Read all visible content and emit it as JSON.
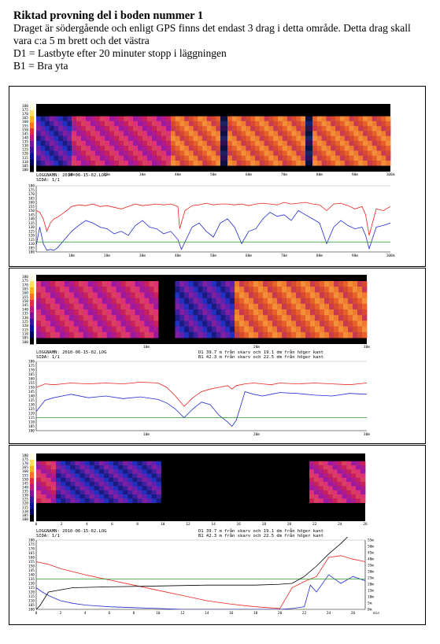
{
  "header": {
    "title": "Riktad provning del i boden nummer 1",
    "lines": [
      "Draget är södergående och enligt GPS finns det endast 3 drag i detta område. Detta drag skall vara c:a 5 m brett och det västra",
      "D1 = Lastbyte efter 20 minuter stopp i läggningen",
      "B1 = Bra yta"
    ]
  },
  "colors": {
    "red_series": "#e8231f",
    "blue_series": "#1f2bd1",
    "green_line": "#2a9a2a",
    "thermal_black": "#000000"
  },
  "scale_labels": [
    "180",
    "175",
    "170",
    "165",
    "160",
    "155",
    "150",
    "145",
    "140",
    "135",
    "130",
    "125",
    "120",
    "115",
    "110",
    "105",
    "100"
  ],
  "panels": [
    {
      "thermal_x_ticks": [
        "10m",
        "20m",
        "30m",
        "40m",
        "50m",
        "60m",
        "70m",
        "80m",
        "90m",
        "100m"
      ],
      "info_left": [
        "LOGGNAMN: 2010-06-15-02.LOG",
        "SIDA: 1/1"
      ],
      "info_right": [],
      "chart_x_ticks": [
        "10m",
        "20m",
        "30m",
        "40m",
        "50m",
        "60m",
        "70m",
        "80m",
        "90m",
        "100m"
      ],
      "chart_y_ticks": [
        "180",
        "175",
        "170",
        "165",
        "160",
        "155",
        "150",
        "145",
        "140",
        "135",
        "130",
        "125",
        "120",
        "115",
        "110",
        "105",
        "100"
      ]
    },
    {
      "thermal_x_ticks": [
        "10m",
        "20m",
        "30m"
      ],
      "info_left": [
        "LOGGNAMN: 2010-06-15-02.LOG",
        "SIDA: 1/1"
      ],
      "info_right": [
        "D1 39.7 m från skarv och 19.1 dm från höger kant",
        "B1 42.3 m från skarv och 22.5 dm från höger kant"
      ],
      "chart_x_ticks": [
        "10m",
        "20m",
        "30m"
      ],
      "chart_y_ticks": [
        "180",
        "175",
        "170",
        "165",
        "160",
        "155",
        "150",
        "145",
        "140",
        "135",
        "130",
        "125",
        "120",
        "115",
        "110",
        "105",
        "100"
      ]
    },
    {
      "thermal_x_ticks": [
        "0",
        "2",
        "4",
        "6",
        "8",
        "10",
        "12",
        "14",
        "16",
        "18",
        "20",
        "22",
        "24",
        "26"
      ],
      "info_left": [
        "LOGGNAMN: 2010-06-15-02.LOG",
        "SIDA: 1/1"
      ],
      "info_right": [
        "D1 39.7 m från skarv och 19.1 dm från höger kant",
        "B1 42.3 m från skarv och 22.5 dm från höger kant"
      ],
      "chart_x_ticks": [
        "0",
        "2",
        "4",
        "6",
        "8",
        "10",
        "12",
        "14",
        "16",
        "18",
        "20",
        "22",
        "24",
        "26"
      ],
      "chart_y_ticks": [
        "180",
        "175",
        "170",
        "165",
        "160",
        "155",
        "150",
        "145",
        "140",
        "135",
        "130",
        "125",
        "120",
        "115",
        "110",
        "105",
        "100"
      ],
      "chart_y2_ticks": [
        "55m",
        "50m",
        "45m",
        "40m",
        "35m",
        "30m",
        "25m",
        "20m",
        "15m",
        "10m",
        "5m",
        "0m"
      ],
      "chart_x_unit": "min"
    }
  ],
  "chart_data": [
    {
      "type": "line",
      "x_ticks": [
        "10m",
        "20m",
        "30m",
        "40m",
        "50m",
        "60m",
        "70m",
        "80m",
        "90m",
        "100m"
      ],
      "xlim": [
        0,
        100
      ],
      "ylim": [
        100,
        180
      ],
      "series": [
        {
          "x": [
            0,
            1,
            2,
            3,
            4,
            5,
            6,
            8,
            10,
            12,
            14,
            16,
            18,
            20,
            22,
            24,
            26,
            28,
            30,
            32,
            34,
            36,
            38,
            40,
            40.5,
            42,
            44,
            46,
            48,
            50,
            52,
            54,
            56,
            58,
            60,
            62,
            64,
            66,
            68,
            70,
            72,
            74,
            76,
            78,
            80,
            82,
            84,
            86,
            88,
            90,
            92,
            93,
            94,
            96,
            98,
            100
          ],
          "values": [
            150,
            148,
            140,
            125,
            135,
            140,
            142,
            148,
            155,
            157,
            156,
            158,
            155,
            156,
            154,
            152,
            155,
            158,
            156,
            157,
            158,
            157,
            158,
            155,
            128,
            150,
            156,
            157,
            159,
            157,
            158,
            158,
            157,
            158,
            156,
            158,
            159,
            158,
            157,
            160,
            158,
            159,
            160,
            158,
            157,
            150,
            158,
            159,
            156,
            152,
            155,
            145,
            120,
            152,
            150,
            155
          ]
        },
        {
          "x": [
            0,
            1,
            2,
            3,
            4,
            5,
            6,
            8,
            10,
            12,
            14,
            16,
            18,
            20,
            22,
            24,
            26,
            28,
            30,
            32,
            34,
            36,
            38,
            40,
            41,
            42,
            44,
            46,
            48,
            50,
            52,
            54,
            56,
            58,
            60,
            62,
            64,
            66,
            68,
            70,
            72,
            74,
            76,
            78,
            80,
            82,
            84,
            86,
            88,
            90,
            92,
            93,
            94,
            96,
            98,
            100
          ],
          "values": [
            108,
            130,
            110,
            102,
            103,
            102,
            105,
            115,
            125,
            132,
            138,
            135,
            130,
            128,
            122,
            125,
            120,
            132,
            138,
            130,
            128,
            122,
            125,
            115,
            103,
            112,
            130,
            135,
            125,
            118,
            135,
            140,
            130,
            110,
            125,
            128,
            140,
            148,
            143,
            145,
            138,
            150,
            145,
            140,
            135,
            110,
            130,
            138,
            132,
            128,
            130,
            120,
            104,
            130,
            132,
            135
          ]
        },
        {
          "x": [
            0,
            100
          ],
          "values": [
            112,
            112
          ]
        }
      ]
    },
    {
      "type": "line",
      "x_ticks": [
        "10m",
        "20m",
        "30m"
      ],
      "xlim": [
        0,
        38
      ],
      "ylim": [
        100,
        180
      ],
      "series": [
        {
          "x": [
            0,
            1,
            2,
            3,
            4,
            6,
            8,
            10,
            12,
            14,
            15,
            16,
            17,
            18,
            19,
            20,
            21,
            22,
            22.5,
            23,
            24,
            25,
            26,
            27,
            28,
            30,
            32,
            34,
            36,
            38
          ],
          "values": [
            150,
            154,
            153,
            154,
            155,
            154,
            155,
            154,
            156,
            155,
            150,
            140,
            128,
            138,
            145,
            148,
            150,
            152,
            148,
            152,
            154,
            155,
            154,
            153,
            155,
            154,
            155,
            154,
            153,
            155
          ]
        },
        {
          "x": [
            0,
            1,
            2,
            3,
            4,
            6,
            8,
            10,
            12,
            14,
            15,
            16,
            17,
            18,
            19,
            20,
            21,
            22,
            22.5,
            23,
            24,
            25,
            26,
            27,
            28,
            30,
            32,
            34,
            36,
            38
          ],
          "values": [
            122,
            135,
            138,
            140,
            142,
            138,
            140,
            137,
            139,
            136,
            132,
            125,
            115,
            125,
            133,
            130,
            118,
            110,
            105,
            112,
            145,
            142,
            140,
            142,
            144,
            143,
            141,
            140,
            143,
            142
          ]
        },
        {
          "x": [
            0,
            38
          ],
          "values": [
            115,
            115
          ]
        }
      ]
    },
    {
      "type": "line",
      "x_ticks": [
        "0",
        "2",
        "4",
        "6",
        "8",
        "10",
        "12",
        "14",
        "16",
        "18",
        "20",
        "22",
        "24",
        "26"
      ],
      "xlim": [
        0,
        27
      ],
      "ylim": [
        100,
        180
      ],
      "y2_ticks": [
        "55m",
        "50m",
        "45m",
        "40m",
        "35m",
        "30m",
        "25m",
        "20m",
        "15m",
        "10m",
        "5m",
        "0m"
      ],
      "x_unit": "min",
      "series": [
        {
          "x": [
            0,
            1,
            2,
            4,
            6,
            8,
            10,
            12,
            14,
            16,
            18,
            20,
            21,
            22,
            23,
            24,
            25,
            26,
            27
          ],
          "values": [
            155,
            152,
            147,
            140,
            134,
            128,
            122,
            116,
            110,
            106,
            103,
            101,
            125,
            132,
            138,
            160,
            162,
            158,
            155
          ]
        },
        {
          "x": [
            0,
            0.5,
            1,
            1.5,
            2,
            3,
            4,
            5,
            6,
            8,
            10,
            12,
            14,
            16,
            18,
            20,
            21,
            22,
            22.5,
            23,
            24,
            25,
            26,
            27
          ],
          "values": [
            125,
            120,
            116,
            113,
            110,
            107,
            105,
            104,
            103,
            102,
            101,
            100,
            100,
            100,
            100,
            100,
            101,
            103,
            128,
            120,
            140,
            130,
            138,
            133
          ]
        },
        {
          "x": [
            0,
            27
          ],
          "values": [
            135,
            135
          ]
        },
        {
          "x": [
            0,
            0.3,
            1,
            3,
            6,
            10,
            14,
            18,
            20,
            21,
            22,
            23,
            24,
            25,
            26,
            27
          ],
          "values": [
            100,
            104,
            120,
            125,
            126,
            127,
            128,
            128,
            129,
            130,
            138,
            150,
            164,
            176,
            190,
            200
          ]
        }
      ]
    }
  ]
}
